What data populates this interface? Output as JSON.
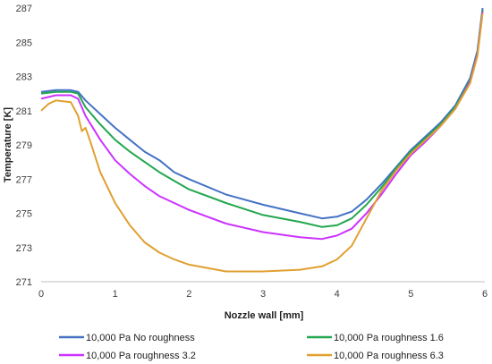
{
  "chart_data": {
    "type": "line",
    "xlabel": "Nozzle wall [mm]",
    "ylabel": "Temperature [K]",
    "xlim": [
      0,
      6
    ],
    "ylim": [
      271,
      287
    ],
    "x_ticks": [
      "0",
      "1",
      "2",
      "3",
      "4",
      "5",
      "6"
    ],
    "y_ticks": [
      "271",
      "273",
      "275",
      "277",
      "279",
      "281",
      "283",
      "285",
      "287"
    ],
    "grid": false,
    "legend_position": "bottom",
    "series": [
      {
        "name": "10,000 Pa No roughness",
        "color": "#4472C4",
        "x": [
          0,
          0.2,
          0.4,
          0.5,
          0.6,
          0.8,
          1.0,
          1.2,
          1.4,
          1.6,
          1.8,
          2.0,
          2.5,
          3.0,
          3.5,
          3.8,
          4.0,
          4.2,
          4.4,
          4.6,
          4.8,
          5.0,
          5.2,
          5.4,
          5.6,
          5.8,
          5.9,
          5.97
        ],
        "y": [
          282.1,
          282.2,
          282.2,
          282.1,
          281.6,
          280.8,
          280.0,
          279.3,
          278.6,
          278.1,
          277.4,
          277.0,
          276.1,
          275.5,
          275.0,
          274.7,
          274.8,
          275.1,
          275.8,
          276.7,
          277.7,
          278.7,
          279.5,
          280.3,
          281.3,
          282.9,
          284.5,
          287.0
        ]
      },
      {
        "name": "10,000 Pa roughness 1.6",
        "color": "#22A74E",
        "x": [
          0,
          0.2,
          0.4,
          0.5,
          0.6,
          0.8,
          1.0,
          1.2,
          1.4,
          1.6,
          1.8,
          2.0,
          2.5,
          3.0,
          3.5,
          3.8,
          4.0,
          4.2,
          4.4,
          4.6,
          4.8,
          5.0,
          5.2,
          5.4,
          5.6,
          5.8,
          5.9,
          5.97
        ],
        "y": [
          282.0,
          282.1,
          282.1,
          282.0,
          281.2,
          280.2,
          279.3,
          278.6,
          278.0,
          277.4,
          276.9,
          276.4,
          275.6,
          274.9,
          274.5,
          274.2,
          274.3,
          274.7,
          275.5,
          276.5,
          277.6,
          278.6,
          279.4,
          280.2,
          281.2,
          282.8,
          284.4,
          286.9
        ]
      },
      {
        "name": "10,000 Pa roughness 3.2",
        "color": "#CC33FF",
        "x": [
          0,
          0.2,
          0.4,
          0.5,
          0.6,
          0.8,
          1.0,
          1.2,
          1.4,
          1.6,
          1.8,
          2.0,
          2.5,
          3.0,
          3.5,
          3.8,
          4.0,
          4.2,
          4.4,
          4.6,
          4.8,
          5.0,
          5.2,
          5.4,
          5.6,
          5.8,
          5.9,
          5.97
        ],
        "y": [
          281.7,
          281.9,
          281.9,
          281.7,
          280.7,
          279.3,
          278.1,
          277.3,
          276.6,
          276.0,
          275.6,
          275.2,
          274.4,
          273.9,
          273.6,
          273.5,
          273.7,
          274.1,
          275.0,
          276.1,
          277.3,
          278.4,
          279.2,
          280.1,
          281.1,
          282.7,
          284.3,
          286.8
        ]
      },
      {
        "name": "10,000 Pa roughness 6.3",
        "color": "#E0A030",
        "x": [
          0,
          0.1,
          0.2,
          0.4,
          0.5,
          0.55,
          0.6,
          0.65,
          0.8,
          1.0,
          1.2,
          1.4,
          1.6,
          1.8,
          2.0,
          2.5,
          3.0,
          3.5,
          3.8,
          4.0,
          4.2,
          4.4,
          4.6,
          4.8,
          5.0,
          5.2,
          5.4,
          5.6,
          5.8,
          5.9,
          5.97
        ],
        "y": [
          281.0,
          281.4,
          281.6,
          281.5,
          280.7,
          279.8,
          280.0,
          279.4,
          277.4,
          275.6,
          274.3,
          273.3,
          272.7,
          272.3,
          272.0,
          271.6,
          271.6,
          271.7,
          271.9,
          272.3,
          273.1,
          274.7,
          276.3,
          277.5,
          278.5,
          279.3,
          280.1,
          281.1,
          282.6,
          284.2,
          286.7
        ]
      }
    ]
  }
}
